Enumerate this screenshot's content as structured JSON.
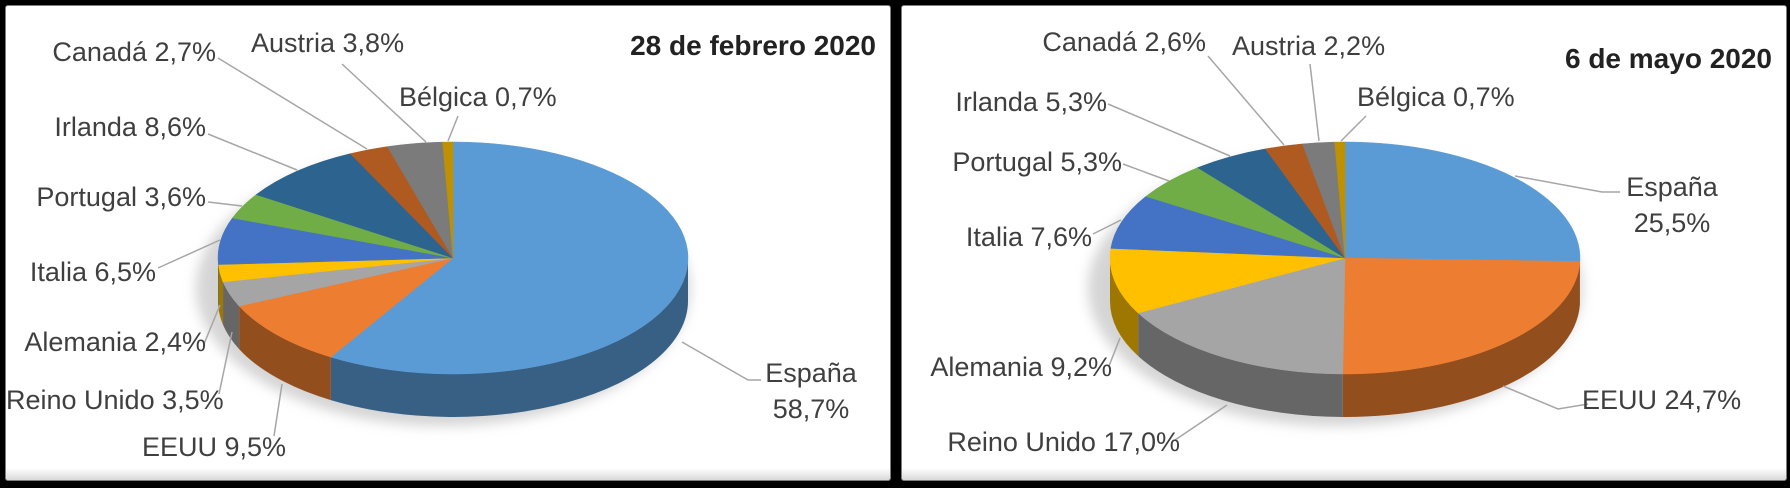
{
  "chart_data": [
    {
      "type": "pie",
      "title": "28 de febrero 2020",
      "effect": "3d",
      "legend": "none",
      "label_style": "outside-with-leader-lines",
      "categories": [
        "España",
        "EEUU",
        "Reino Unido",
        "Alemania",
        "Italia",
        "Portugal",
        "Irlanda",
        "Canadá",
        "Austria",
        "Bélgica"
      ],
      "values": [
        58.7,
        9.5,
        3.5,
        2.4,
        6.5,
        3.6,
        8.6,
        2.7,
        3.8,
        0.7
      ],
      "value_labels": [
        "58,7%",
        "9,5%",
        "3,5%",
        "2,4%",
        "6,5%",
        "3,6%",
        "8,6%",
        "2,7%",
        "3,8%",
        "0,7%"
      ],
      "colors": [
        "#5B9BD5",
        "#ED7D31",
        "#A5A5A5",
        "#FFC000",
        "#4472C4",
        "#70AD47",
        "#2D648F",
        "#AE5A21",
        "#7B7B7B",
        "#BF9000"
      ]
    },
    {
      "type": "pie",
      "title": "6 de mayo 2020",
      "effect": "3d",
      "legend": "none",
      "label_style": "outside-with-leader-lines",
      "categories": [
        "España",
        "EEUU",
        "Reino Unido",
        "Alemania",
        "Italia",
        "Portugal",
        "Irlanda",
        "Canadá",
        "Austria",
        "Bélgica"
      ],
      "values": [
        25.5,
        24.7,
        17.0,
        9.2,
        7.6,
        5.3,
        5.3,
        2.6,
        2.2,
        0.7
      ],
      "value_labels": [
        "25,5%",
        "24,7%",
        "17,0%",
        "9,2%",
        "7,6%",
        "5,3%",
        "5,3%",
        "2,6%",
        "2,2%",
        "0,7%"
      ],
      "colors": [
        "#5B9BD5",
        "#ED7D31",
        "#A5A5A5",
        "#FFC000",
        "#4472C4",
        "#70AD47",
        "#2D648F",
        "#AE5A21",
        "#7B7B7B",
        "#BF9000"
      ]
    }
  ],
  "ui": {
    "leader_line_color": "#A6A6A6",
    "label_text_color": "#3F3F3F",
    "panel_background": "#FFFFFF",
    "outer_background": "#000000"
  }
}
